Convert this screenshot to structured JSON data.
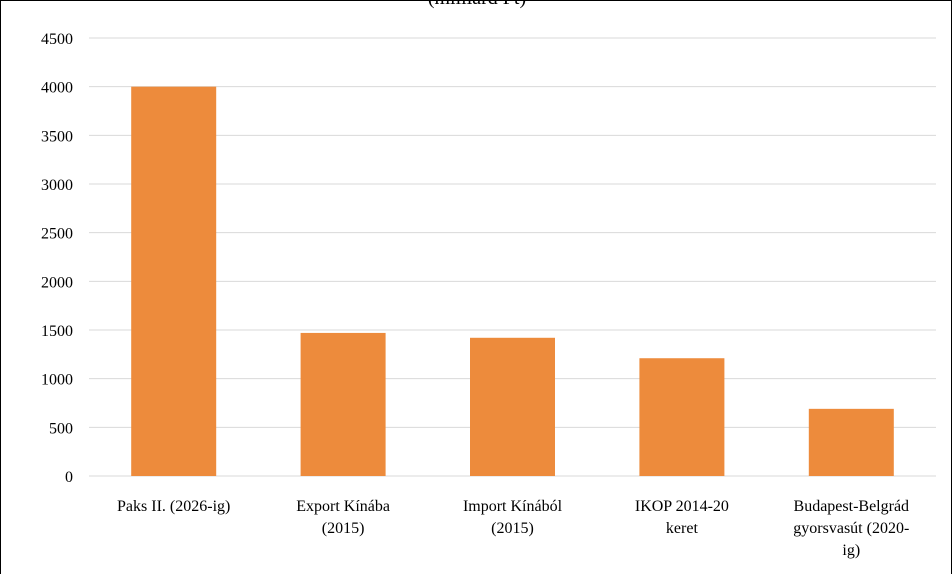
{
  "chart_data": {
    "type": "bar",
    "title": "(milliárd Ft)",
    "categories": [
      [
        "Paks II. (2026-ig)"
      ],
      [
        "Export Kínába",
        "(2015)"
      ],
      [
        "Import Kínából",
        "(2015)"
      ],
      [
        "IKOP 2014-20",
        "keret"
      ],
      [
        "Budapest-Belgrád",
        "gyorsvasút (2020-",
        "ig)"
      ]
    ],
    "values": [
      4000,
      1470,
      1420,
      1210,
      690
    ],
    "ylim": [
      0,
      4500
    ],
    "yticks": [
      0,
      500,
      1000,
      1500,
      2000,
      2500,
      3000,
      3500,
      4000,
      4500
    ],
    "xlabel": "",
    "ylabel": "",
    "grid": true,
    "bar_color": "#ED8B3C",
    "grid_color": "#D9D9D9"
  }
}
